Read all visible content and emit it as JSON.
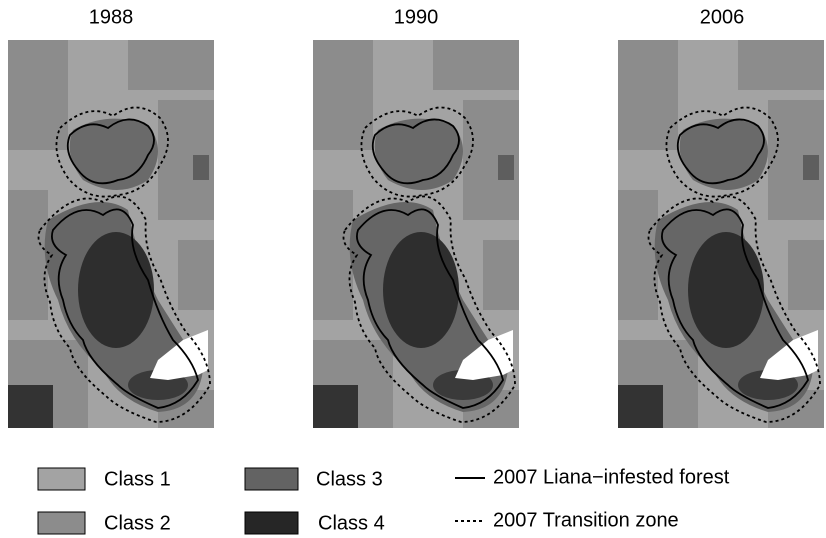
{
  "panels": [
    {
      "title": "1988"
    },
    {
      "title": "1990"
    },
    {
      "title": "2006"
    }
  ],
  "legend": {
    "classes": [
      {
        "label": "Class 1"
      },
      {
        "label": "Class 2"
      },
      {
        "label": "Class 3"
      },
      {
        "label": "Class 4"
      }
    ],
    "lines": [
      {
        "label": "2007 Liana−infested forest"
      },
      {
        "label": "2007 Transition zone"
      }
    ]
  }
}
